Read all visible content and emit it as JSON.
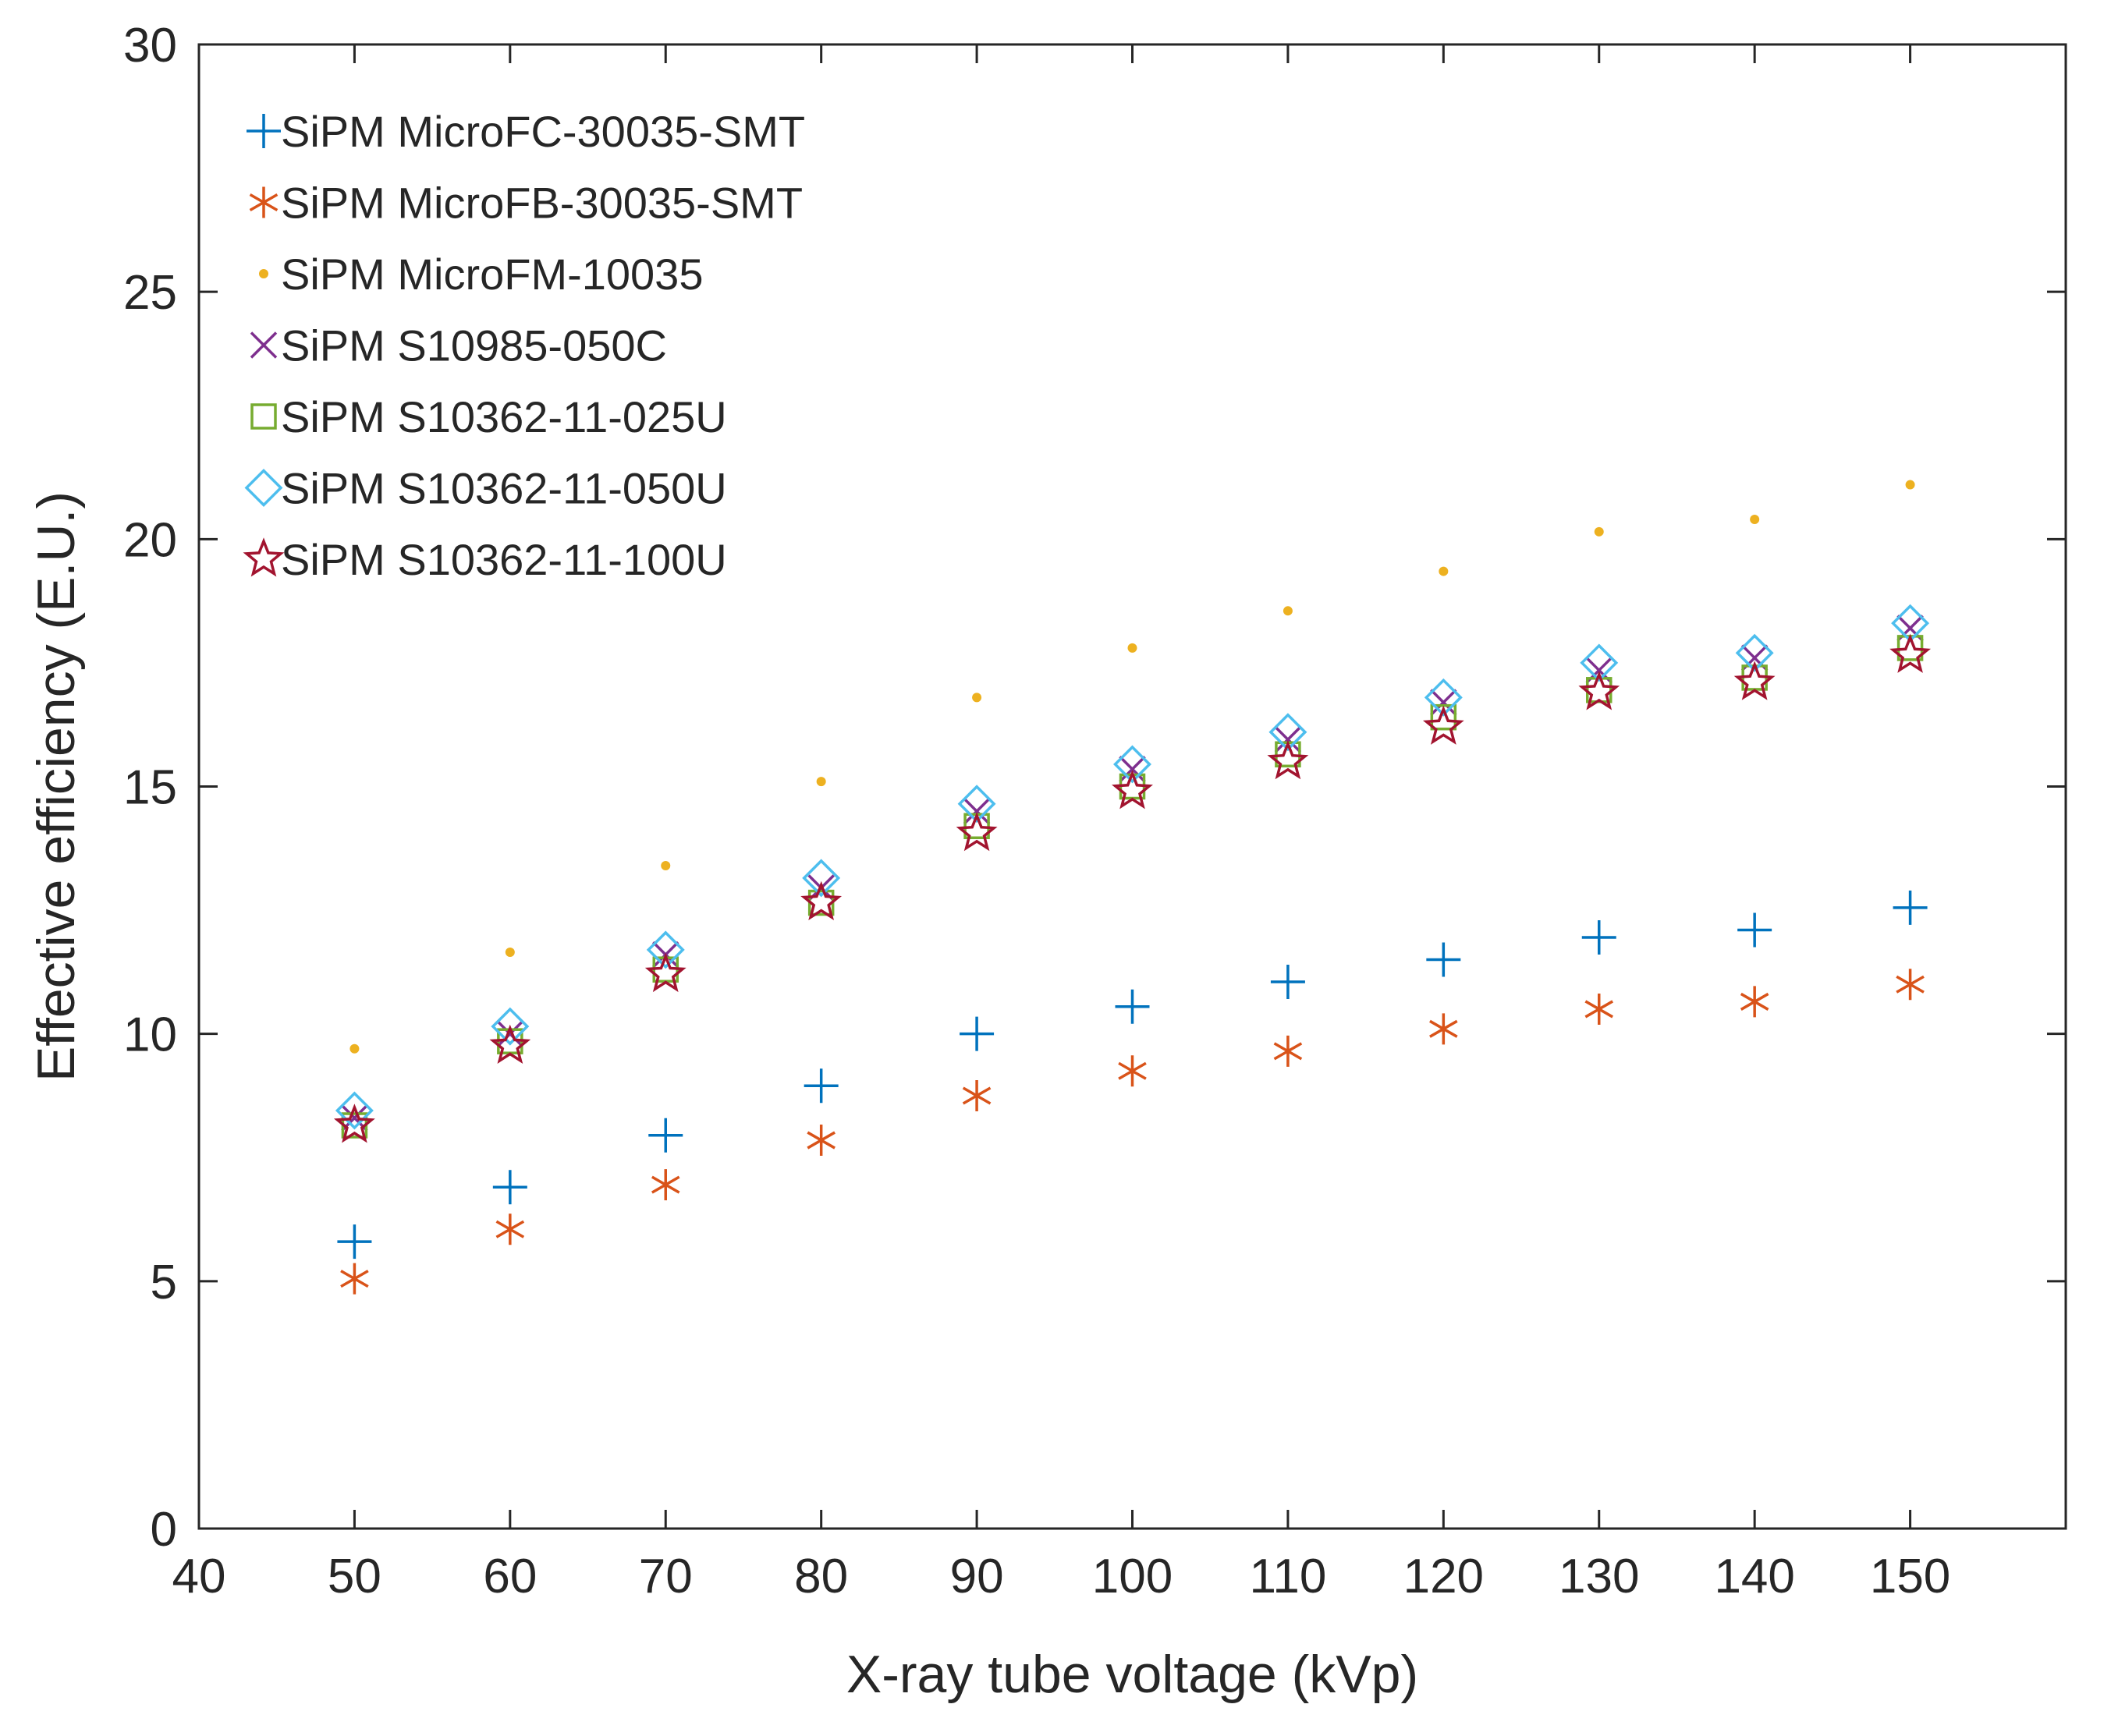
{
  "chart_data": {
    "type": "scatter",
    "title": "",
    "xlabel": "X-ray tube voltage (kVp)",
    "ylabel": "Effective efficiency (E.U.)",
    "xlim": [
      40,
      160
    ],
    "ylim": [
      0,
      30
    ],
    "xticks": [
      40,
      50,
      60,
      70,
      80,
      90,
      100,
      110,
      120,
      130,
      140,
      150
    ],
    "yticks": [
      0,
      5,
      10,
      15,
      20,
      25,
      30
    ],
    "legend_position": "top-left",
    "x": [
      50,
      60,
      70,
      80,
      90,
      100,
      110,
      120,
      130,
      140,
      150
    ],
    "series": [
      {
        "name": "SiPM MicroFC-30035-SMT",
        "marker": "plus",
        "color": "#0072BD",
        "values": [
          5.8,
          6.9,
          7.95,
          8.95,
          10.0,
          10.55,
          11.05,
          11.5,
          11.95,
          12.1,
          12.55
        ]
      },
      {
        "name": "SiPM MicroFB-30035-SMT",
        "marker": "asterisk",
        "color": "#D95319",
        "values": [
          5.05,
          6.05,
          6.95,
          7.85,
          8.75,
          9.25,
          9.65,
          10.1,
          10.5,
          10.65,
          11.0
        ]
      },
      {
        "name": "SiPM MicroFM-10035",
        "marker": "dot",
        "color": "#EDB120",
        "values": [
          9.7,
          11.65,
          13.4,
          15.1,
          16.8,
          17.8,
          18.55,
          19.35,
          20.15,
          20.4,
          21.1
        ]
      },
      {
        "name": "SiPM S10985-050C",
        "marker": "x",
        "color": "#7E2F8E",
        "values": [
          8.3,
          10.0,
          11.6,
          12.95,
          14.5,
          15.35,
          15.95,
          16.7,
          17.35,
          17.6,
          18.2
        ]
      },
      {
        "name": "SiPM S10362-11-025U",
        "marker": "square",
        "color": "#77AC30",
        "values": [
          8.15,
          9.85,
          11.3,
          12.65,
          14.2,
          15.0,
          15.65,
          16.4,
          16.95,
          17.2,
          17.8
        ]
      },
      {
        "name": "SiPM S10362-11-050U",
        "marker": "diamond",
        "color": "#4DBEEE",
        "values": [
          8.45,
          10.15,
          11.7,
          13.15,
          14.65,
          15.45,
          16.1,
          16.8,
          17.5,
          17.7,
          18.3
        ]
      },
      {
        "name": "SiPM S10362-11-100U",
        "marker": "star",
        "color": "#A2142F",
        "values": [
          8.15,
          9.75,
          11.2,
          12.65,
          14.05,
          14.9,
          15.5,
          16.2,
          16.9,
          17.1,
          17.65
        ]
      }
    ]
  }
}
